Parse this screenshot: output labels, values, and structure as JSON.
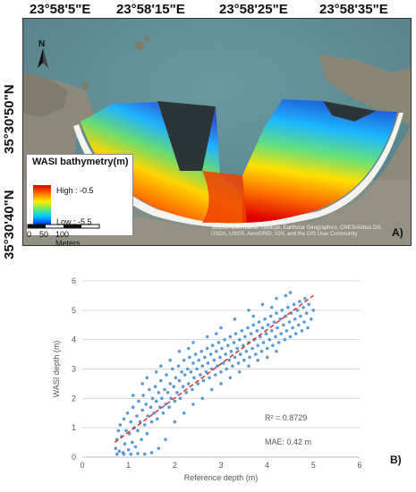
{
  "map": {
    "top_coords": [
      "23°58'5\"E",
      "23°58'15\"E",
      "23°58'25\"E",
      "23°58'35\"E"
    ],
    "left_coords": [
      "35°30'50\"N",
      "35°30'40\"N"
    ],
    "north_label": "N",
    "legend_title": "WASI bathymetry(m)",
    "legend_high": "High : -0.5",
    "legend_low": "Low : -5.5",
    "scale_labels": [
      "0",
      "50",
      "100 Meters"
    ],
    "attribution": "Source: Esri, Maxar, GeoEye, Earthstar Geographics, CNES/Airbus DS, USDA, USGS, AeroGRID, IGN, and the GIS User Community",
    "panel_label": "A)",
    "colors": {
      "sea": "#5f8f98",
      "land": "#8f8a78",
      "beach": "#f4f2ee",
      "shadow": "#2a3436"
    }
  },
  "chart_data": {
    "type": "scatter",
    "title": "",
    "xlabel": "Reference depth (m)",
    "ylabel": "WASI depth (m)",
    "xlim": [
      0,
      6
    ],
    "ylim": [
      0,
      6
    ],
    "xticks": [
      0,
      1,
      2,
      3,
      4,
      5,
      6
    ],
    "yticks": [
      0,
      1,
      2,
      3,
      4,
      5,
      6
    ],
    "grid": "horizontal",
    "point_color": "#5b9bd5",
    "trend_color": "#e03030",
    "trendline": {
      "x": [
        0.7,
        5.0
      ],
      "y": [
        0.5,
        5.5
      ]
    },
    "series": [
      {
        "points": [
          [
            0.72,
            0.3
          ],
          [
            0.75,
            0.6
          ],
          [
            0.78,
            0.9
          ],
          [
            0.8,
            0.2
          ],
          [
            0.82,
            1.1
          ],
          [
            0.85,
            0.7
          ],
          [
            0.88,
            0.15
          ],
          [
            0.9,
            1.3
          ],
          [
            0.92,
            0.45
          ],
          [
            0.95,
            0.9
          ],
          [
            0.98,
            1.5
          ],
          [
            1.0,
            0.25
          ],
          [
            1.02,
            0.8
          ],
          [
            1.05,
            1.2
          ],
          [
            1.08,
            0.5
          ],
          [
            1.1,
            1.7
          ],
          [
            1.12,
            1.0
          ],
          [
            1.15,
            0.35
          ],
          [
            1.18,
            1.4
          ],
          [
            1.2,
            0.9
          ],
          [
            1.22,
            1.9
          ],
          [
            1.25,
            1.2
          ],
          [
            1.28,
            0.6
          ],
          [
            1.3,
            1.6
          ],
          [
            1.32,
            2.1
          ],
          [
            1.35,
            1.1
          ],
          [
            1.38,
            1.8
          ],
          [
            1.4,
            0.8
          ],
          [
            1.42,
            1.4
          ],
          [
            1.45,
            2.3
          ],
          [
            1.48,
            1.7
          ],
          [
            1.5,
            1.2
          ],
          [
            1.52,
            2.0
          ],
          [
            1.55,
            1.5
          ],
          [
            1.58,
            2.4
          ],
          [
            1.6,
            1.9
          ],
          [
            1.62,
            1.3
          ],
          [
            1.65,
            2.2
          ],
          [
            1.68,
            1.7
          ],
          [
            1.7,
            2.6
          ],
          [
            1.72,
            2.0
          ],
          [
            1.75,
            1.5
          ],
          [
            1.78,
            2.3
          ],
          [
            1.8,
            1.8
          ],
          [
            1.82,
            2.8
          ],
          [
            1.85,
            2.2
          ],
          [
            1.88,
            1.7
          ],
          [
            1.9,
            2.5
          ],
          [
            1.92,
            2.0
          ],
          [
            1.95,
            3.0
          ],
          [
            1.98,
            2.4
          ],
          [
            2.0,
            1.9
          ],
          [
            2.02,
            2.7
          ],
          [
            2.05,
            2.2
          ],
          [
            2.08,
            3.1
          ],
          [
            2.1,
            2.6
          ],
          [
            2.12,
            2.0
          ],
          [
            2.15,
            2.9
          ],
          [
            2.18,
            2.4
          ],
          [
            2.2,
            3.3
          ],
          [
            2.22,
            2.8
          ],
          [
            2.25,
            2.2
          ],
          [
            2.28,
            3.0
          ],
          [
            2.3,
            2.5
          ],
          [
            2.32,
            3.4
          ],
          [
            2.35,
            2.9
          ],
          [
            2.38,
            2.3
          ],
          [
            2.4,
            3.2
          ],
          [
            2.42,
            2.7
          ],
          [
            2.45,
            3.5
          ],
          [
            2.48,
            3.0
          ],
          [
            2.5,
            2.5
          ],
          [
            2.52,
            3.3
          ],
          [
            2.55,
            2.8
          ],
          [
            2.58,
            3.6
          ],
          [
            2.6,
            3.1
          ],
          [
            2.62,
            2.6
          ],
          [
            2.65,
            3.4
          ],
          [
            2.68,
            2.9
          ],
          [
            2.7,
            3.7
          ],
          [
            2.72,
            3.2
          ],
          [
            2.75,
            2.7
          ],
          [
            2.78,
            3.5
          ],
          [
            2.8,
            3.0
          ],
          [
            2.82,
            3.8
          ],
          [
            2.85,
            3.3
          ],
          [
            2.88,
            2.8
          ],
          [
            2.9,
            3.6
          ],
          [
            2.92,
            3.1
          ],
          [
            2.95,
            3.9
          ],
          [
            2.98,
            3.4
          ],
          [
            3.0,
            2.9
          ],
          [
            3.02,
            3.7
          ],
          [
            3.05,
            3.2
          ],
          [
            3.08,
            4.0
          ],
          [
            3.1,
            3.5
          ],
          [
            3.12,
            3.0
          ],
          [
            3.15,
            3.8
          ],
          [
            3.18,
            3.3
          ],
          [
            3.2,
            4.1
          ],
          [
            3.22,
            3.6
          ],
          [
            3.25,
            3.1
          ],
          [
            3.28,
            3.9
          ],
          [
            3.3,
            3.4
          ],
          [
            3.32,
            4.2
          ],
          [
            3.35,
            3.7
          ],
          [
            3.38,
            3.2
          ],
          [
            3.4,
            4.0
          ],
          [
            3.42,
            3.5
          ],
          [
            3.45,
            4.3
          ],
          [
            3.48,
            3.8
          ],
          [
            3.5,
            3.3
          ],
          [
            3.52,
            4.1
          ],
          [
            3.55,
            3.6
          ],
          [
            3.58,
            4.4
          ],
          [
            3.6,
            3.9
          ],
          [
            3.62,
            3.4
          ],
          [
            3.65,
            4.2
          ],
          [
            3.68,
            3.7
          ],
          [
            3.7,
            4.5
          ],
          [
            3.72,
            4.0
          ],
          [
            3.75,
            3.5
          ],
          [
            3.78,
            4.3
          ],
          [
            3.8,
            3.8
          ],
          [
            3.82,
            4.6
          ],
          [
            3.85,
            4.1
          ],
          [
            3.88,
            3.6
          ],
          [
            3.9,
            4.4
          ],
          [
            3.92,
            3.9
          ],
          [
            3.95,
            4.7
          ],
          [
            3.98,
            4.2
          ],
          [
            4.0,
            3.7
          ],
          [
            4.02,
            4.5
          ],
          [
            4.05,
            4.0
          ],
          [
            4.08,
            4.8
          ],
          [
            4.1,
            4.3
          ],
          [
            4.12,
            3.8
          ],
          [
            4.15,
            4.6
          ],
          [
            4.18,
            4.1
          ],
          [
            4.2,
            4.9
          ],
          [
            4.22,
            4.4
          ],
          [
            4.25,
            3.9
          ],
          [
            4.28,
            4.7
          ],
          [
            4.3,
            4.2
          ],
          [
            4.32,
            5.0
          ],
          [
            4.35,
            4.5
          ],
          [
            4.38,
            4.0
          ],
          [
            4.4,
            4.8
          ],
          [
            4.42,
            4.3
          ],
          [
            4.45,
            5.1
          ],
          [
            4.48,
            4.6
          ],
          [
            4.5,
            4.1
          ],
          [
            4.52,
            4.9
          ],
          [
            4.55,
            4.4
          ],
          [
            4.58,
            5.2
          ],
          [
            4.6,
            4.7
          ],
          [
            4.62,
            4.2
          ],
          [
            4.65,
            5.0
          ],
          [
            4.68,
            4.5
          ],
          [
            4.7,
            5.3
          ],
          [
            4.72,
            4.8
          ],
          [
            4.75,
            4.3
          ],
          [
            4.78,
            5.1
          ],
          [
            4.8,
            4.6
          ],
          [
            4.82,
            5.4
          ],
          [
            4.85,
            4.9
          ],
          [
            4.88,
            4.4
          ],
          [
            4.9,
            5.2
          ],
          [
            4.95,
            4.7
          ],
          [
            5.0,
            5.0
          ],
          [
            0.75,
            0.1
          ],
          [
            0.9,
            0.1
          ],
          [
            1.05,
            0.1
          ],
          [
            1.2,
            0.12
          ],
          [
            1.35,
            0.1
          ],
          [
            1.5,
            0.15
          ],
          [
            1.65,
            0.3
          ],
          [
            1.8,
            0.6
          ],
          [
            2.0,
            1.2
          ],
          [
            2.2,
            1.5
          ],
          [
            2.4,
            1.8
          ],
          [
            2.6,
            2.0
          ],
          [
            2.8,
            2.3
          ],
          [
            3.0,
            2.5
          ],
          [
            3.2,
            2.7
          ],
          [
            3.4,
            2.9
          ],
          [
            3.6,
            3.1
          ],
          [
            3.8,
            3.3
          ],
          [
            4.0,
            3.4
          ],
          [
            4.2,
            3.6
          ],
          [
            1.1,
            2.1
          ],
          [
            1.3,
            2.5
          ],
          [
            1.6,
            2.9
          ],
          [
            1.9,
            3.3
          ],
          [
            2.1,
            3.6
          ],
          [
            2.4,
            3.9
          ],
          [
            2.7,
            4.1
          ],
          [
            3.0,
            4.4
          ],
          [
            3.3,
            4.7
          ],
          [
            3.6,
            5.0
          ],
          [
            3.9,
            5.2
          ],
          [
            4.2,
            5.4
          ],
          [
            4.5,
            5.6
          ],
          [
            4.4,
            5.5
          ],
          [
            4.1,
            5.1
          ],
          [
            3.7,
            4.8
          ],
          [
            2.9,
            4.2
          ],
          [
            2.3,
            3.7
          ],
          [
            1.7,
            3.1
          ],
          [
            1.4,
            2.7
          ]
        ]
      }
    ],
    "annotations": {
      "r2": "R² = 0.8729",
      "mae": "MAE: 0.42 m"
    },
    "panel_label": "B)"
  }
}
